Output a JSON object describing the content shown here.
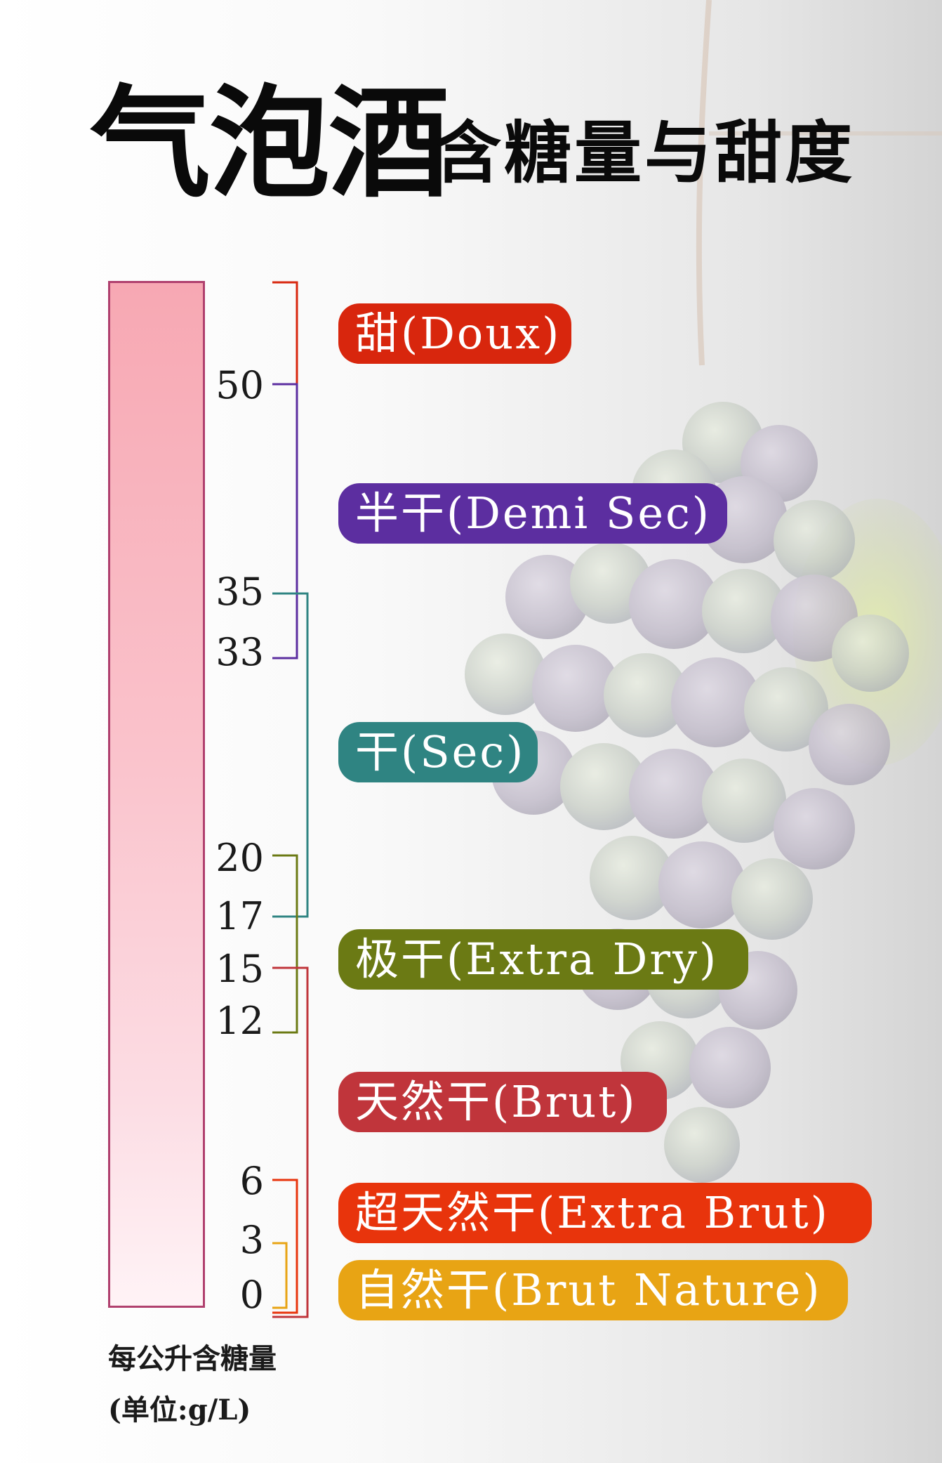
{
  "title": {
    "main": "气泡酒",
    "sub": "含糖量与甜度"
  },
  "ticks": [
    "50",
    "35",
    "33",
    "20",
    "17",
    "15",
    "12",
    "6",
    "3",
    "0"
  ],
  "categories": [
    {
      "label": "甜(Doux)",
      "color": "#d8260d"
    },
    {
      "label": "半干(Demi Sec)",
      "color": "#5c2ea0"
    },
    {
      "label": "干(Sec)",
      "color": "#2f8482"
    },
    {
      "label": "极干(Extra Dry)",
      "color": "#6b7a14"
    },
    {
      "label": "天然干(Brut)",
      "color": "#c0353b"
    },
    {
      "label": "超天然干(Extra Brut)",
      "color": "#e8340c"
    },
    {
      "label": "自然干(Brut Nature)",
      "color": "#e8a414"
    }
  ],
  "axis": {
    "label": "每公升含糖量",
    "unit": "(单位:g/L)"
  }
}
